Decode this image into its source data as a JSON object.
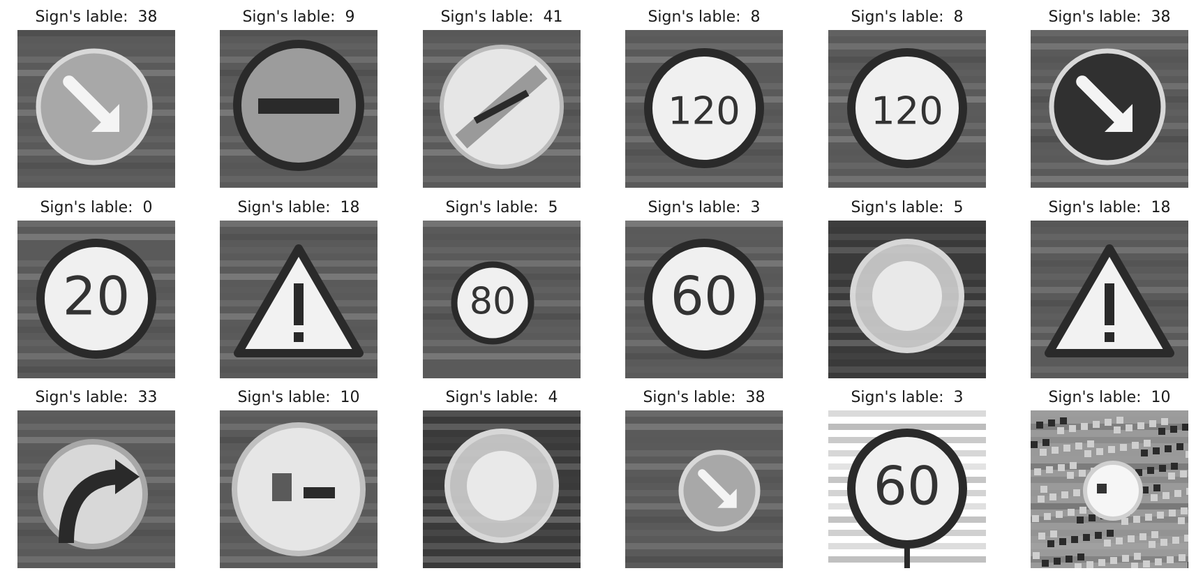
{
  "figure": {
    "title_prefix": "Sign's lable:  ",
    "panels": [
      {
        "label": "38",
        "kind": "keep-right",
        "bright": true
      },
      {
        "label": "9",
        "kind": "no-entry-bar"
      },
      {
        "label": "41",
        "kind": "end-restriction"
      },
      {
        "label": "8",
        "kind": "speed",
        "text": "120"
      },
      {
        "label": "8",
        "kind": "speed",
        "text": "120"
      },
      {
        "label": "38",
        "kind": "keep-right",
        "bright": false
      },
      {
        "label": "0",
        "kind": "speed",
        "text": "20"
      },
      {
        "label": "18",
        "kind": "warning"
      },
      {
        "label": "5",
        "kind": "speed",
        "text": "80",
        "small": true
      },
      {
        "label": "3",
        "kind": "speed",
        "text": "60"
      },
      {
        "label": "5",
        "kind": "blur-circle"
      },
      {
        "label": "18",
        "kind": "warning"
      },
      {
        "label": "33",
        "kind": "turn-right"
      },
      {
        "label": "10",
        "kind": "no-overtaking"
      },
      {
        "label": "4",
        "kind": "blur-circle"
      },
      {
        "label": "38",
        "kind": "keep-right-small"
      },
      {
        "label": "3",
        "kind": "speed",
        "text": "60",
        "whitebg": true
      },
      {
        "label": "10",
        "kind": "noisy-circle"
      }
    ]
  }
}
